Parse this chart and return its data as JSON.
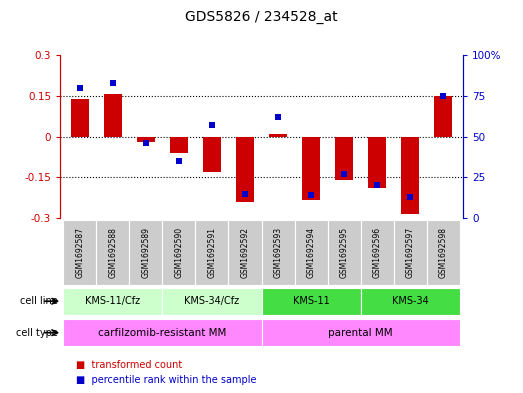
{
  "title": "GDS5826 / 234528_at",
  "samples": [
    "GSM1692587",
    "GSM1692588",
    "GSM1692589",
    "GSM1692590",
    "GSM1692591",
    "GSM1692592",
    "GSM1692593",
    "GSM1692594",
    "GSM1692595",
    "GSM1692596",
    "GSM1692597",
    "GSM1692598"
  ],
  "red_values": [
    0.138,
    0.155,
    -0.02,
    -0.06,
    -0.13,
    -0.24,
    0.01,
    -0.235,
    -0.16,
    -0.19,
    -0.285,
    0.15
  ],
  "blue_values": [
    80,
    83,
    46,
    35,
    57,
    15,
    62,
    14,
    27,
    20,
    13,
    75
  ],
  "ylim_left": [
    -0.3,
    0.3
  ],
  "ylim_right": [
    0,
    100
  ],
  "yticks_left": [
    -0.3,
    -0.15,
    0.0,
    0.15,
    0.3
  ],
  "yticks_right": [
    0,
    25,
    50,
    75,
    100
  ],
  "ytick_labels_left": [
    "-0.3",
    "-0.15",
    "0",
    "0.15",
    "0.3"
  ],
  "ytick_labels_right": [
    "0",
    "25",
    "50",
    "75",
    "100%"
  ],
  "hlines": [
    -0.15,
    0.0,
    0.15
  ],
  "bar_width": 0.55,
  "red_color": "#cc0000",
  "blue_color": "#0000cc",
  "bg_color": "#ffffff",
  "sample_bg_color": "#cccccc",
  "title_color": "#000000",
  "left_axis_color": "#cc0000",
  "right_axis_color": "#0000cc",
  "cl_groups": [
    {
      "label": "KMS-11/Cfz",
      "cols": [
        0,
        1,
        2
      ],
      "color": "#ccffcc"
    },
    {
      "label": "KMS-34/Cfz",
      "cols": [
        3,
        4,
        5
      ],
      "color": "#ccffcc"
    },
    {
      "label": "KMS-11",
      "cols": [
        6,
        7,
        8
      ],
      "color": "#44dd44"
    },
    {
      "label": "KMS-34",
      "cols": [
        9,
        10,
        11
      ],
      "color": "#44dd44"
    }
  ],
  "ct_groups": [
    {
      "label": "carfilzomib-resistant MM",
      "cols": [
        0,
        1,
        2,
        3,
        4,
        5
      ],
      "color": "#ff88ff"
    },
    {
      "label": "parental MM",
      "cols": [
        6,
        7,
        8,
        9,
        10,
        11
      ],
      "color": "#ff88ff"
    }
  ]
}
